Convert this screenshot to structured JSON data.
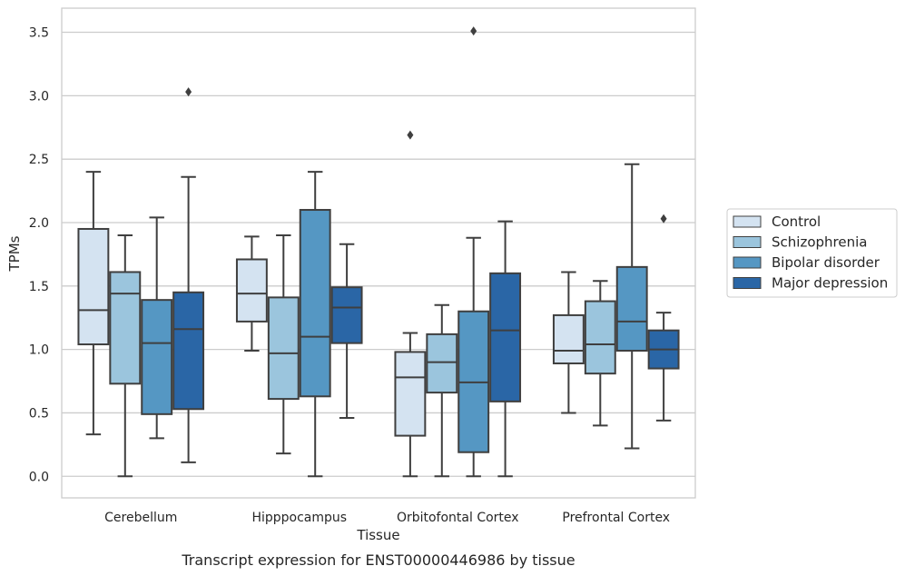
{
  "caption": "Transcript expression for ENST00000446986 by tissue",
  "chart_data": {
    "type": "box",
    "title": "",
    "xlabel": "Tissue",
    "ylabel": "TPMs",
    "ylim": [
      -0.17,
      3.69
    ],
    "yticks": [
      "0.0",
      "0.5",
      "1.0",
      "1.5",
      "2.0",
      "2.5",
      "3.0",
      "3.5"
    ],
    "grid": "horizontal",
    "legend_position": "right",
    "categories": [
      "Cerebellum",
      "Hipppocampus",
      "Orbitofontal Cortex",
      "Prefrontal Cortex"
    ],
    "series": [
      {
        "name": "Control",
        "color": "#d4e3f1",
        "boxes": [
          {
            "whislo": 0.33,
            "q1": 1.04,
            "med": 1.31,
            "q3": 1.95,
            "whishi": 2.4,
            "fliers": []
          },
          {
            "whislo": 0.99,
            "q1": 1.22,
            "med": 1.44,
            "q3": 1.71,
            "whishi": 1.89,
            "fliers": []
          },
          {
            "whislo": 0.0,
            "q1": 0.32,
            "med": 0.78,
            "q3": 0.98,
            "whishi": 1.13,
            "fliers": [
              2.69
            ]
          },
          {
            "whislo": 0.5,
            "q1": 0.89,
            "med": 0.99,
            "q3": 1.27,
            "whishi": 1.61,
            "fliers": []
          }
        ]
      },
      {
        "name": "Schizophrenia",
        "color": "#9bc5dd",
        "boxes": [
          {
            "whislo": 0.0,
            "q1": 0.73,
            "med": 1.44,
            "q3": 1.61,
            "whishi": 1.9,
            "fliers": []
          },
          {
            "whislo": 0.18,
            "q1": 0.61,
            "med": 0.97,
            "q3": 1.41,
            "whishi": 1.9,
            "fliers": []
          },
          {
            "whislo": 0.0,
            "q1": 0.66,
            "med": 0.9,
            "q3": 1.12,
            "whishi": 1.35,
            "fliers": []
          },
          {
            "whislo": 0.4,
            "q1": 0.81,
            "med": 1.04,
            "q3": 1.38,
            "whishi": 1.54,
            "fliers": []
          }
        ]
      },
      {
        "name": "Bipolar disorder",
        "color": "#5597c3",
        "boxes": [
          {
            "whislo": 0.3,
            "q1": 0.49,
            "med": 1.05,
            "q3": 1.39,
            "whishi": 2.04,
            "fliers": []
          },
          {
            "whislo": 0.0,
            "q1": 0.63,
            "med": 1.1,
            "q3": 2.1,
            "whishi": 2.4,
            "fliers": []
          },
          {
            "whislo": 0.0,
            "q1": 0.19,
            "med": 0.74,
            "q3": 1.3,
            "whishi": 1.88,
            "fliers": [
              3.51
            ]
          },
          {
            "whislo": 0.22,
            "q1": 0.99,
            "med": 1.22,
            "q3": 1.65,
            "whishi": 2.46,
            "fliers": []
          }
        ]
      },
      {
        "name": "Major depression",
        "color": "#2a66a6",
        "boxes": [
          {
            "whislo": 0.11,
            "q1": 0.53,
            "med": 1.16,
            "q3": 1.45,
            "whishi": 2.36,
            "fliers": [
              3.03
            ]
          },
          {
            "whislo": 0.46,
            "q1": 1.05,
            "med": 1.33,
            "q3": 1.49,
            "whishi": 1.83,
            "fliers": []
          },
          {
            "whislo": 0.0,
            "q1": 0.59,
            "med": 1.15,
            "q3": 1.6,
            "whishi": 2.01,
            "fliers": []
          },
          {
            "whislo": 0.44,
            "q1": 0.85,
            "med": 1.0,
            "q3": 1.15,
            "whishi": 1.29,
            "fliers": [
              2.03
            ]
          }
        ]
      }
    ]
  },
  "colors": {
    "grid": "#cccccc",
    "frame": "#cccccc",
    "line": "#3f3f3f"
  }
}
